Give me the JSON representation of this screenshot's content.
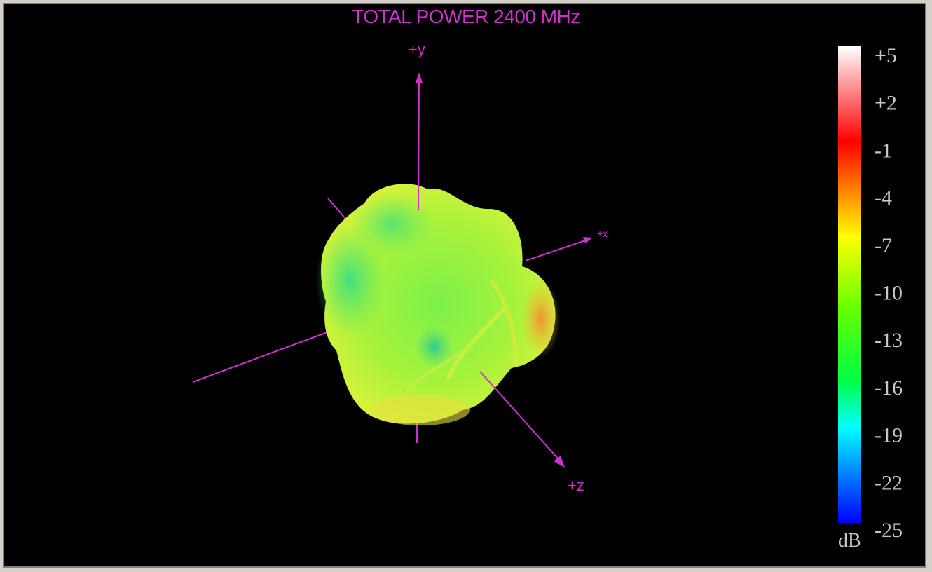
{
  "chart_data": {
    "type": "heatmap",
    "title": "TOTAL POWER 2400   MHz",
    "axes": [
      {
        "name": "+y",
        "direction": "up"
      },
      {
        "name": "+x",
        "direction": "right-back"
      },
      {
        "name": "+z",
        "direction": "front-down"
      }
    ],
    "colorbar": {
      "unit": "dB",
      "ticks": [
        "+5",
        "+2",
        "-1",
        "-4",
        "-7",
        "-10",
        "-13",
        "-16",
        "-19",
        "-22",
        "-25"
      ],
      "range": [
        -25,
        5
      ],
      "placement": "right"
    },
    "pattern": {
      "min_db_approx": -14,
      "max_db_approx": -4,
      "dominant_db_approx": -8
    }
  },
  "colors": {
    "background": "#000000",
    "axis": "#cc33cc",
    "title": "#cc33cc",
    "scale_text": "#c8c8c8"
  }
}
